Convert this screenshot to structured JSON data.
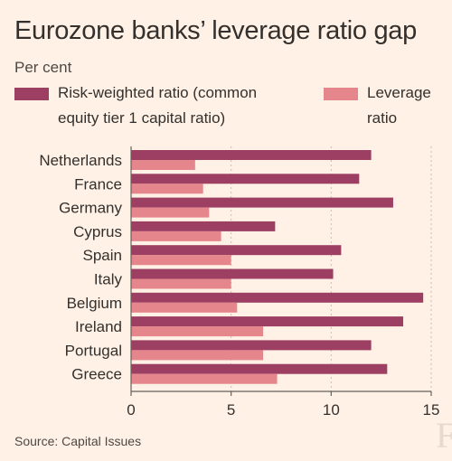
{
  "title": "Eurozone banks’ leverage ratio gap",
  "subtitle": "Per cent",
  "source": "Source: Capital Issues",
  "logo_text": "F",
  "colors": {
    "background": "#fff1e5",
    "risk_weighted": "#9c3f63",
    "leverage": "#e5868c",
    "grid": "#c9bdb3",
    "axis": "#66605c"
  },
  "chart_data": {
    "type": "bar",
    "orientation": "horizontal",
    "categories": [
      "Netherlands",
      "France",
      "Germany",
      "Cyprus",
      "Spain",
      "Italy",
      "Belgium",
      "Ireland",
      "Portugal",
      "Greece"
    ],
    "series": [
      {
        "name": "Risk-weighted ratio (common equity tier 1 capital ratio)",
        "values": [
          12.0,
          11.4,
          13.1,
          7.2,
          10.5,
          10.1,
          14.6,
          13.6,
          12.0,
          12.8
        ]
      },
      {
        "name": "Leverage ratio",
        "values": [
          3.2,
          3.6,
          3.9,
          4.5,
          5.0,
          5.0,
          5.3,
          6.6,
          6.6,
          7.3
        ]
      }
    ],
    "xlim": [
      0,
      15
    ],
    "xticks": [
      0,
      5,
      10,
      15
    ],
    "grid": true,
    "legend_position": "top"
  }
}
